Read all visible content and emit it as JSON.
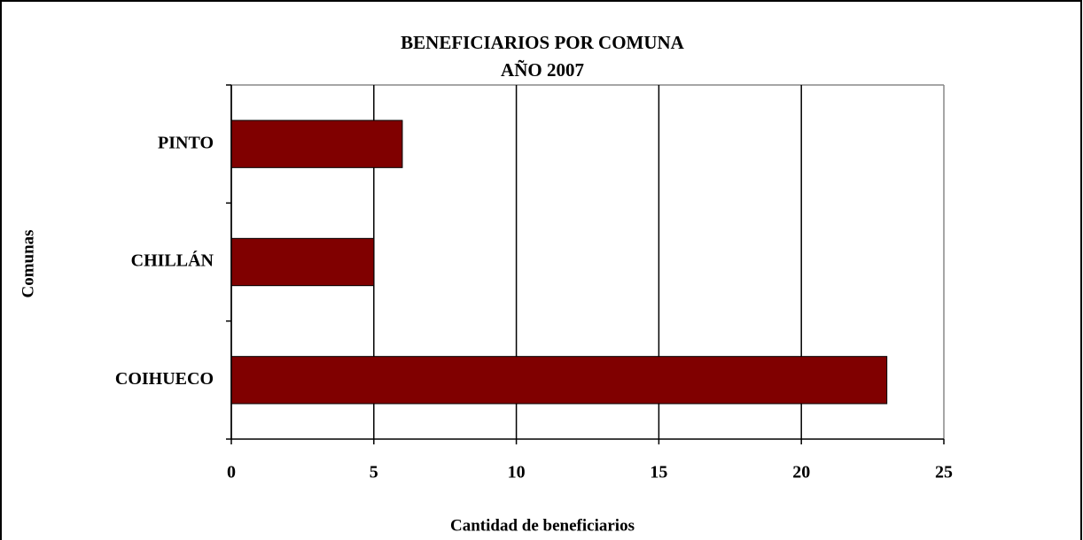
{
  "chart_data": {
    "type": "bar",
    "orientation": "horizontal",
    "title": "BENEFICIARIOS POR COMUNA",
    "subtitle": "AÑO 2007",
    "categories": [
      "PINTO",
      "CHILLÁN",
      "COIHUECO"
    ],
    "values": [
      6,
      5,
      23
    ],
    "color": "#800000",
    "xlim": [
      0,
      25
    ],
    "xticks": [
      0,
      5,
      10,
      15,
      20,
      25
    ],
    "xlabel": "Cantidad de beneficiarios",
    "ylabel": "Comunas",
    "grid": true
  }
}
